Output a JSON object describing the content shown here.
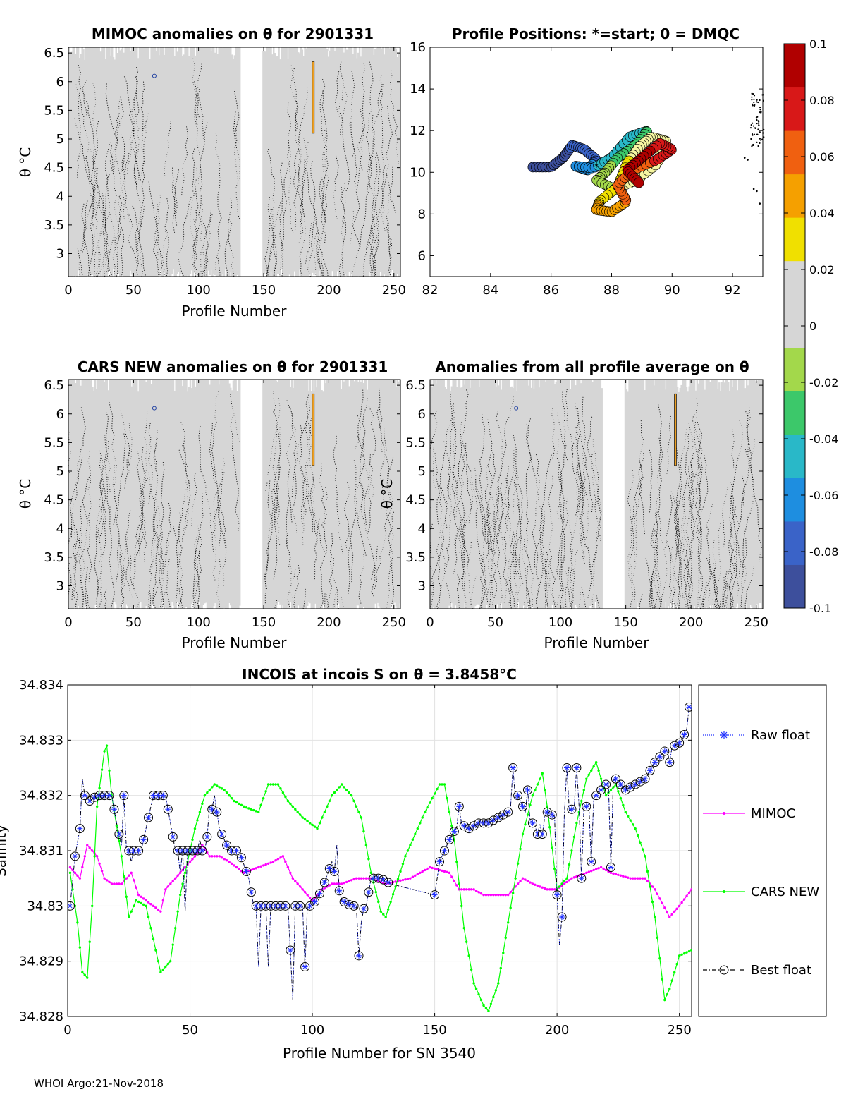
{
  "colors": {
    "raw": "#2030ff",
    "mimoc": "#ff00ff",
    "cars": "#00ff00",
    "best": "#000000",
    "field": "#d6d6d6",
    "grid": "#e2e2e2"
  },
  "footer": "WHOI Argo:21-Nov-2018",
  "chart_data": [
    {
      "id": "mimoc",
      "type": "heatmap",
      "title": "MIMOC anomalies on θ  for 2901331",
      "xlabel": "Profile Number",
      "ylabel": "θ °C",
      "xlim": [
        0,
        255
      ],
      "ylim": [
        2.6,
        6.6
      ],
      "xticks": [
        "0",
        "50",
        "100",
        "150",
        "200",
        "250"
      ],
      "yticks": [
        "3",
        "3.5",
        "4",
        "4.5",
        "5",
        "5.5",
        "6",
        "6.5"
      ],
      "gap_profiles": [
        133,
        149
      ]
    },
    {
      "id": "positions",
      "type": "scatter",
      "title": "Profile Positions: *=start; 0 = DMQC",
      "xlim": [
        82,
        93
      ],
      "ylim": [
        5,
        16
      ],
      "xticks": [
        "82",
        "84",
        "86",
        "88",
        "90",
        "92"
      ],
      "yticks": [
        "6",
        "8",
        "10",
        "12",
        "14",
        "16"
      ]
    },
    {
      "id": "cars",
      "type": "heatmap",
      "title": "CARS NEW anomalies on θ for 2901331",
      "xlabel": "Profile Number",
      "ylabel": "θ °C",
      "xlim": [
        0,
        255
      ],
      "ylim": [
        2.6,
        6.6
      ],
      "xticks": [
        "0",
        "50",
        "100",
        "150",
        "200",
        "250"
      ],
      "yticks": [
        "3",
        "3.5",
        "4",
        "4.5",
        "5",
        "5.5",
        "6",
        "6.5"
      ],
      "gap_profiles": [
        133,
        149
      ]
    },
    {
      "id": "avg",
      "type": "heatmap",
      "title": "Anomalies from all profile average on θ",
      "xlabel": "Profile Number",
      "ylabel": "θ °C",
      "xlim": [
        0,
        255
      ],
      "ylim": [
        2.6,
        6.6
      ],
      "xticks": [
        "0",
        "50",
        "100",
        "150",
        "200",
        "250"
      ],
      "yticks": [
        "3",
        "3.5",
        "4",
        "4.5",
        "5",
        "5.5",
        "6",
        "6.5"
      ],
      "gap_profiles": [
        133,
        149
      ]
    },
    {
      "id": "colorbar",
      "type": "colorbar",
      "range": [
        -0.1,
        0.1
      ],
      "ticks": [
        "0.1",
        "0.08",
        "0.06",
        "0.04",
        "0.02",
        "0",
        "-0.02",
        "-0.04",
        "-0.06",
        "-0.08",
        "-0.1"
      ],
      "colors": [
        "#3d4f9c",
        "#3a63c8",
        "#1e8ee0",
        "#29b8c8",
        "#3cc86a",
        "#a3d84b",
        "#d6d6d6",
        "#d6d6d6",
        "#f0e000",
        "#f5a000",
        "#f06010",
        "#d81818",
        "#b00000"
      ]
    },
    {
      "id": "salinity",
      "type": "line",
      "title": "INCOIS at incois S on θ = 3.8458°C",
      "xlabel": "Profile Number for SN 3540",
      "ylabel": "Salinity",
      "xlim": [
        0,
        255
      ],
      "ylim": [
        34.828,
        34.834
      ],
      "xticks": [
        "0",
        "50",
        "100",
        "150",
        "200",
        "250"
      ],
      "yticks": [
        "34.828",
        "34.829",
        "34.83",
        "34.831",
        "34.832",
        "34.833",
        "34.834"
      ],
      "legend": [
        "Raw float",
        "MIMOC",
        "CARS NEW",
        "Best float"
      ],
      "legend_position": "right",
      "mimoc_anchors": [
        [
          1,
          34.8307
        ],
        [
          5,
          34.8305
        ],
        [
          8,
          34.8311
        ],
        [
          12,
          34.8309
        ],
        [
          15,
          34.8305
        ],
        [
          18,
          34.8304
        ],
        [
          22,
          34.8304
        ],
        [
          26,
          34.8306
        ],
        [
          29,
          34.8302
        ],
        [
          35,
          34.83
        ],
        [
          38,
          34.8299
        ],
        [
          40,
          34.8303
        ],
        [
          48,
          34.8307
        ],
        [
          52,
          34.8309
        ],
        [
          55,
          34.8311
        ],
        [
          58,
          34.8309
        ],
        [
          62,
          34.8309
        ],
        [
          66,
          34.8308
        ],
        [
          72,
          34.8306
        ],
        [
          78,
          34.8307
        ],
        [
          84,
          34.8308
        ],
        [
          88,
          34.8309
        ],
        [
          92,
          34.8305
        ],
        [
          96,
          34.8303
        ],
        [
          100,
          34.8301
        ],
        [
          104,
          34.8303
        ],
        [
          108,
          34.8304
        ],
        [
          112,
          34.8304
        ],
        [
          118,
          34.8305
        ],
        [
          124,
          34.8305
        ],
        [
          130,
          34.8304
        ],
        [
          140,
          34.8305
        ],
        [
          148,
          34.8307
        ],
        [
          156,
          34.8306
        ],
        [
          160,
          34.8303
        ],
        [
          166,
          34.8303
        ],
        [
          170,
          34.8302
        ],
        [
          175,
          34.8302
        ],
        [
          180,
          34.8302
        ],
        [
          186,
          34.8305
        ],
        [
          190,
          34.8304
        ],
        [
          196,
          34.8303
        ],
        [
          200,
          34.8303
        ],
        [
          206,
          34.8305
        ],
        [
          212,
          34.8306
        ],
        [
          218,
          34.8307
        ],
        [
          222,
          34.8306
        ],
        [
          230,
          34.8305
        ],
        [
          236,
          34.8305
        ],
        [
          240,
          34.8303
        ],
        [
          246,
          34.8298
        ],
        [
          250,
          34.83
        ],
        [
          255,
          34.8303
        ]
      ],
      "cars_anchors": [
        [
          1,
          34.8306
        ],
        [
          4,
          34.8297
        ],
        [
          6,
          34.8288
        ],
        [
          8,
          34.8287
        ],
        [
          10,
          34.83
        ],
        [
          12,
          34.8318
        ],
        [
          15,
          34.8328
        ],
        [
          16,
          34.8329
        ],
        [
          18,
          34.832
        ],
        [
          22,
          34.8309
        ],
        [
          25,
          34.8298
        ],
        [
          28,
          34.8301
        ],
        [
          32,
          34.83
        ],
        [
          36,
          34.8292
        ],
        [
          38,
          34.8288
        ],
        [
          42,
          34.829
        ],
        [
          46,
          34.8302
        ],
        [
          52,
          34.8314
        ],
        [
          56,
          34.832
        ],
        [
          60,
          34.8322
        ],
        [
          64,
          34.8321
        ],
        [
          68,
          34.8319
        ],
        [
          72,
          34.8318
        ],
        [
          78,
          34.8317
        ],
        [
          82,
          34.8322
        ],
        [
          86,
          34.8322
        ],
        [
          90,
          34.8319
        ],
        [
          96,
          34.8316
        ],
        [
          102,
          34.8314
        ],
        [
          108,
          34.832
        ],
        [
          112,
          34.8322
        ],
        [
          116,
          34.832
        ],
        [
          120,
          34.8316
        ],
        [
          124,
          34.8306
        ],
        [
          128,
          34.8299
        ],
        [
          130,
          34.8298
        ],
        [
          138,
          34.8309
        ],
        [
          146,
          34.8317
        ],
        [
          152,
          34.8322
        ],
        [
          154,
          34.8322
        ],
        [
          158,
          34.8312
        ],
        [
          162,
          34.8296
        ],
        [
          166,
          34.8286
        ],
        [
          170,
          34.8282
        ],
        [
          172,
          34.8281
        ],
        [
          176,
          34.8286
        ],
        [
          180,
          34.8297
        ],
        [
          186,
          34.8313
        ],
        [
          190,
          34.832
        ],
        [
          194,
          34.8324
        ],
        [
          196,
          34.8318
        ],
        [
          200,
          34.8303
        ],
        [
          204,
          34.8305
        ],
        [
          208,
          34.8315
        ],
        [
          212,
          34.8323
        ],
        [
          216,
          34.8326
        ],
        [
          220,
          34.832
        ],
        [
          224,
          34.8322
        ],
        [
          228,
          34.8317
        ],
        [
          232,
          34.8314
        ],
        [
          236,
          34.8309
        ],
        [
          240,
          34.8298
        ],
        [
          244,
          34.8283
        ],
        [
          246,
          34.8285
        ],
        [
          250,
          34.8291
        ],
        [
          255,
          34.8292
        ]
      ],
      "float_anchors": [
        [
          1,
          34.83
        ],
        [
          3,
          34.8309
        ],
        [
          5,
          34.8314
        ],
        [
          7,
          34.832
        ],
        [
          9,
          34.8319
        ],
        [
          12,
          34.832
        ],
        [
          15,
          34.832
        ],
        [
          18,
          34.832
        ],
        [
          20,
          34.8315
        ],
        [
          22,
          34.8311
        ],
        [
          25,
          34.831
        ],
        [
          30,
          34.831
        ],
        [
          35,
          34.832
        ],
        [
          38,
          34.832
        ],
        [
          40,
          34.832
        ],
        [
          44,
          34.831
        ],
        [
          48,
          34.831
        ],
        [
          52,
          34.831
        ],
        [
          56,
          34.831
        ],
        [
          60,
          34.832
        ],
        [
          62,
          34.8314
        ],
        [
          66,
          34.831
        ],
        [
          70,
          34.831
        ],
        [
          74,
          34.8305
        ],
        [
          76,
          34.83
        ],
        [
          80,
          34.83
        ],
        [
          84,
          34.83
        ],
        [
          88,
          34.83
        ],
        [
          92,
          34.83
        ],
        [
          96,
          34.83
        ],
        [
          100,
          34.83
        ],
        [
          104,
          34.8303
        ],
        [
          108,
          34.8308
        ],
        [
          112,
          34.8301
        ],
        [
          116,
          34.83
        ],
        [
          118,
          34.83
        ],
        [
          120,
          34.8299
        ],
        [
          122,
          34.83
        ],
        [
          124,
          34.8305
        ],
        [
          128,
          34.8305
        ],
        [
          132,
          34.8304
        ],
        [
          150,
          34.8302
        ],
        [
          152,
          34.8308
        ],
        [
          156,
          34.8312
        ],
        [
          160,
          34.8315
        ],
        [
          164,
          34.8314
        ],
        [
          168,
          34.8315
        ],
        [
          172,
          34.8315
        ],
        [
          176,
          34.8316
        ],
        [
          180,
          34.8317
        ],
        [
          184,
          34.832
        ],
        [
          188,
          34.8316
        ],
        [
          192,
          34.8314
        ],
        [
          196,
          34.8317
        ],
        [
          200,
          34.8316
        ],
        [
          204,
          34.8317
        ],
        [
          208,
          34.8318
        ],
        [
          212,
          34.8318
        ],
        [
          216,
          34.832
        ],
        [
          220,
          34.8322
        ],
        [
          224,
          34.8323
        ],
        [
          228,
          34.8321
        ],
        [
          232,
          34.8322
        ],
        [
          236,
          34.8323
        ],
        [
          240,
          34.8326
        ],
        [
          244,
          34.8328
        ],
        [
          248,
          34.8329
        ],
        [
          252,
          34.833
        ],
        [
          255,
          34.8336
        ]
      ],
      "outliers": [
        [
          6,
          34.8323
        ],
        [
          23,
          34.832
        ],
        [
          26,
          34.8308
        ],
        [
          34,
          34.8318
        ],
        [
          40,
          34.832
        ],
        [
          46,
          34.8306
        ],
        [
          48,
          34.8299
        ],
        [
          54,
          34.8312
        ],
        [
          58,
          34.8318
        ],
        [
          78,
          34.8289
        ],
        [
          82,
          34.8289
        ],
        [
          91,
          34.8292
        ],
        [
          92,
          34.8283
        ],
        [
          97,
          34.8289
        ],
        [
          110,
          34.8311
        ],
        [
          119,
          34.8291
        ],
        [
          120,
          34.8297
        ],
        [
          150,
          34.8302
        ],
        [
          154,
          34.831
        ],
        [
          160,
          34.8318
        ],
        [
          182,
          34.8325
        ],
        [
          188,
          34.8321
        ],
        [
          192,
          34.8313
        ],
        [
          194,
          34.8313
        ],
        [
          200,
          34.8302
        ],
        [
          201,
          34.8293
        ],
        [
          202,
          34.8298
        ],
        [
          204,
          34.8325
        ],
        [
          208,
          34.8325
        ],
        [
          210,
          34.8305
        ],
        [
          214,
          34.8308
        ],
        [
          222,
          34.8307
        ],
        [
          246,
          34.8326
        ],
        [
          252,
          34.8331
        ],
        [
          254,
          34.8336
        ]
      ]
    }
  ]
}
